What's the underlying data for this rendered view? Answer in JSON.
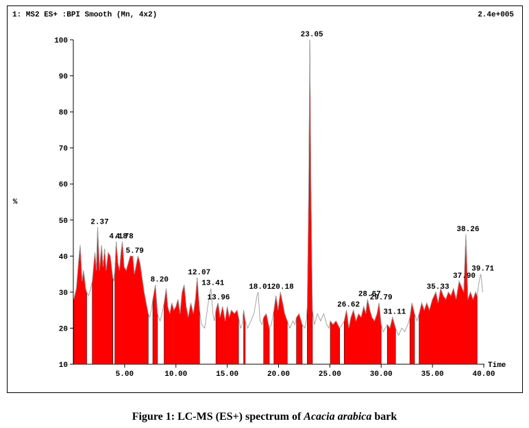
{
  "chart_data": {
    "type": "chromatogram",
    "header": "1: MS2 ES+ :BPI Smooth (Mn, 4x2)",
    "scale_label": "2.4e+005",
    "y_label": "%",
    "x_label": "Time",
    "xlim": [
      0,
      40
    ],
    "ylim": [
      10,
      100
    ],
    "xticks": [
      {
        "value": 5,
        "label": "5.00"
      },
      {
        "value": 10,
        "label": "10.00"
      },
      {
        "value": 15,
        "label": "15.00"
      },
      {
        "value": 20,
        "label": "20.00"
      },
      {
        "value": 25,
        "label": "25.00"
      },
      {
        "value": 30,
        "label": "30.00"
      },
      {
        "value": 35,
        "label": "35.00"
      },
      {
        "value": 40,
        "label": "40.00"
      }
    ],
    "yticks": [
      10,
      20,
      30,
      40,
      50,
      60,
      70,
      80,
      90,
      100
    ],
    "fill_color": "#ff0000",
    "line_color": "#9a9a9a",
    "x": [
      0.05,
      0.3,
      0.5,
      0.67,
      0.85,
      1.0,
      1.2,
      1.3,
      1.5,
      1.7,
      1.85,
      2.1,
      2.25,
      2.37,
      2.55,
      2.75,
      2.9,
      3.05,
      3.2,
      3.4,
      3.6,
      3.85,
      3.95,
      4.05,
      4.18,
      4.35,
      4.5,
      4.65,
      4.78,
      4.95,
      5.15,
      5.35,
      5.55,
      5.79,
      5.95,
      6.1,
      6.3,
      6.5,
      6.7,
      6.9,
      7.1,
      7.3,
      7.45,
      7.6,
      7.75,
      8.0,
      8.2,
      8.45,
      8.65,
      8.85,
      9.05,
      9.2,
      9.4,
      9.6,
      9.8,
      10.0,
      10.2,
      10.4,
      10.6,
      10.8,
      11.0,
      11.2,
      11.45,
      11.7,
      11.9,
      12.07,
      12.3,
      12.5,
      12.8,
      13.0,
      13.2,
      13.41,
      13.6,
      13.75,
      13.9,
      14.1,
      14.3,
      14.55,
      14.8,
      15.0,
      15.2,
      15.4,
      15.7,
      15.96,
      16.1,
      16.3,
      16.45,
      16.6,
      16.75,
      17.0,
      17.3,
      17.6,
      17.9,
      18.01,
      18.2,
      18.4,
      18.55,
      18.8,
      19.1,
      19.3,
      19.55,
      19.75,
      19.95,
      20.18,
      20.4,
      20.6,
      20.85,
      21.1,
      21.4,
      21.6,
      21.75,
      22.0,
      22.3,
      22.55,
      22.7,
      22.8,
      22.95,
      23.05,
      23.15,
      23.3,
      23.5,
      23.8,
      24.1,
      24.4,
      24.7,
      24.9,
      25.05,
      25.3,
      25.6,
      25.95,
      26.2,
      26.4,
      26.62,
      26.85,
      27.05,
      27.3,
      27.55,
      27.8,
      28.05,
      28.3,
      28.5,
      28.67,
      28.9,
      29.1,
      29.35,
      29.6,
      29.79,
      30.0,
      30.2,
      30.4,
      30.6,
      30.85,
      31.11,
      31.4,
      31.7,
      32.0,
      32.3,
      32.6,
      32.8,
      33.0,
      33.25,
      33.5,
      33.7,
      33.95,
      34.2,
      34.45,
      34.7,
      35.0,
      35.33,
      35.55,
      35.8,
      36.05,
      36.3,
      36.55,
      36.8,
      37.05,
      37.3,
      37.6,
      37.9,
      38.05,
      38.26,
      38.45,
      38.7,
      38.95,
      39.2,
      39.35,
      39.55,
      39.71,
      39.9
    ],
    "values": [
      28,
      31,
      38,
      43,
      33,
      36,
      31,
      30,
      29,
      31,
      33,
      41,
      36,
      48,
      36,
      43,
      37,
      42,
      36,
      41,
      40,
      34,
      33,
      36,
      44,
      38,
      36,
      41,
      44,
      37,
      36,
      38,
      40,
      40,
      35,
      37,
      40,
      38,
      34,
      30,
      27,
      24,
      23,
      25,
      28,
      32,
      24,
      22,
      24,
      27,
      31,
      26,
      24,
      27,
      25,
      26,
      28,
      24,
      30,
      32,
      26,
      23,
      27,
      24,
      28,
      34,
      25,
      21,
      20,
      24,
      28,
      31,
      24,
      22,
      25,
      27,
      23,
      26,
      22,
      26,
      23,
      25,
      24,
      25,
      23,
      20,
      21,
      25,
      22,
      20,
      22,
      24,
      29,
      30,
      22,
      21,
      23,
      24,
      20,
      21,
      25,
      29,
      25,
      30,
      27,
      24,
      22,
      20,
      22,
      21,
      23,
      24,
      21,
      20,
      22,
      26,
      60,
      100,
      60,
      25,
      21,
      24,
      22,
      24,
      21,
      20,
      22,
      21,
      22,
      20,
      21,
      22,
      25,
      20,
      23,
      25,
      22,
      24,
      23,
      26,
      24,
      28,
      25,
      23,
      22,
      24,
      27,
      21,
      19,
      20,
      21,
      20,
      23,
      20,
      18,
      20,
      19,
      21,
      23,
      27,
      24,
      22,
      24,
      27,
      25,
      27,
      25,
      28,
      30,
      27,
      31,
      29,
      28,
      30,
      29,
      31,
      28,
      33,
      31,
      30,
      46,
      28,
      30,
      28,
      30,
      29,
      33,
      35,
      30
    ],
    "filled": [
      true,
      true,
      true,
      true,
      true,
      true,
      true,
      true,
      false,
      false,
      true,
      true,
      true,
      true,
      true,
      true,
      true,
      true,
      true,
      true,
      true,
      true,
      false,
      true,
      true,
      true,
      true,
      true,
      true,
      true,
      true,
      true,
      true,
      true,
      true,
      true,
      true,
      true,
      true,
      true,
      true,
      true,
      false,
      false,
      true,
      true,
      true,
      false,
      false,
      true,
      true,
      true,
      true,
      true,
      true,
      true,
      true,
      true,
      true,
      true,
      true,
      true,
      true,
      true,
      true,
      true,
      true,
      false,
      false,
      false,
      false,
      false,
      false,
      false,
      true,
      true,
      true,
      true,
      true,
      true,
      true,
      true,
      true,
      true,
      true,
      false,
      false,
      true,
      true,
      false,
      false,
      false,
      false,
      false,
      false,
      false,
      true,
      true,
      true,
      false,
      true,
      true,
      true,
      true,
      true,
      true,
      true,
      false,
      false,
      false,
      true,
      true,
      true,
      false,
      false,
      true,
      true,
      true,
      true,
      true,
      false,
      false,
      false,
      false,
      false,
      false,
      true,
      true,
      true,
      true,
      false,
      true,
      true,
      true,
      true,
      true,
      true,
      true,
      true,
      true,
      true,
      true,
      true,
      true,
      true,
      true,
      true,
      true,
      false,
      false,
      true,
      true,
      true,
      true,
      false,
      false,
      false,
      false,
      true,
      true,
      true,
      false,
      true,
      true,
      true,
      true,
      true,
      true,
      true,
      true,
      true,
      true,
      true,
      true,
      true,
      true,
      true,
      true,
      true,
      true,
      true,
      true,
      true,
      true,
      true,
      true,
      false,
      false,
      false
    ],
    "annotations": [
      {
        "x": 2.37,
        "label": "2.37"
      },
      {
        "x": 4.18,
        "label": "4.18"
      },
      {
        "x": 4.78,
        "label": "4.78"
      },
      {
        "x": 5.79,
        "label": "5.79"
      },
      {
        "x": 8.2,
        "label": "8.20"
      },
      {
        "x": 12.07,
        "label": "12.07"
      },
      {
        "x": 13.41,
        "label": "13.41"
      },
      {
        "x": 13.96,
        "label": "13.96"
      },
      {
        "x": 18.01,
        "label": "18.01"
      },
      {
        "x": 20.18,
        "label": "20.18"
      },
      {
        "x": 23.05,
        "label": "23.05"
      },
      {
        "x": 26.62,
        "label": "26.62"
      },
      {
        "x": 28.67,
        "label": "28.67"
      },
      {
        "x": 29.79,
        "label": "29.79"
      },
      {
        "x": 31.11,
        "label": "31.11"
      },
      {
        "x": 35.33,
        "label": "35.33"
      },
      {
        "x": 37.9,
        "label": "37.90"
      },
      {
        "x": 38.26,
        "label": "38.26"
      },
      {
        "x": 39.71,
        "label": "39.71"
      }
    ]
  },
  "caption": {
    "prefix": "Figure 1:  LC-MS (ES+) spectrum of ",
    "species": "Acacia arabica",
    "suffix": " bark"
  }
}
